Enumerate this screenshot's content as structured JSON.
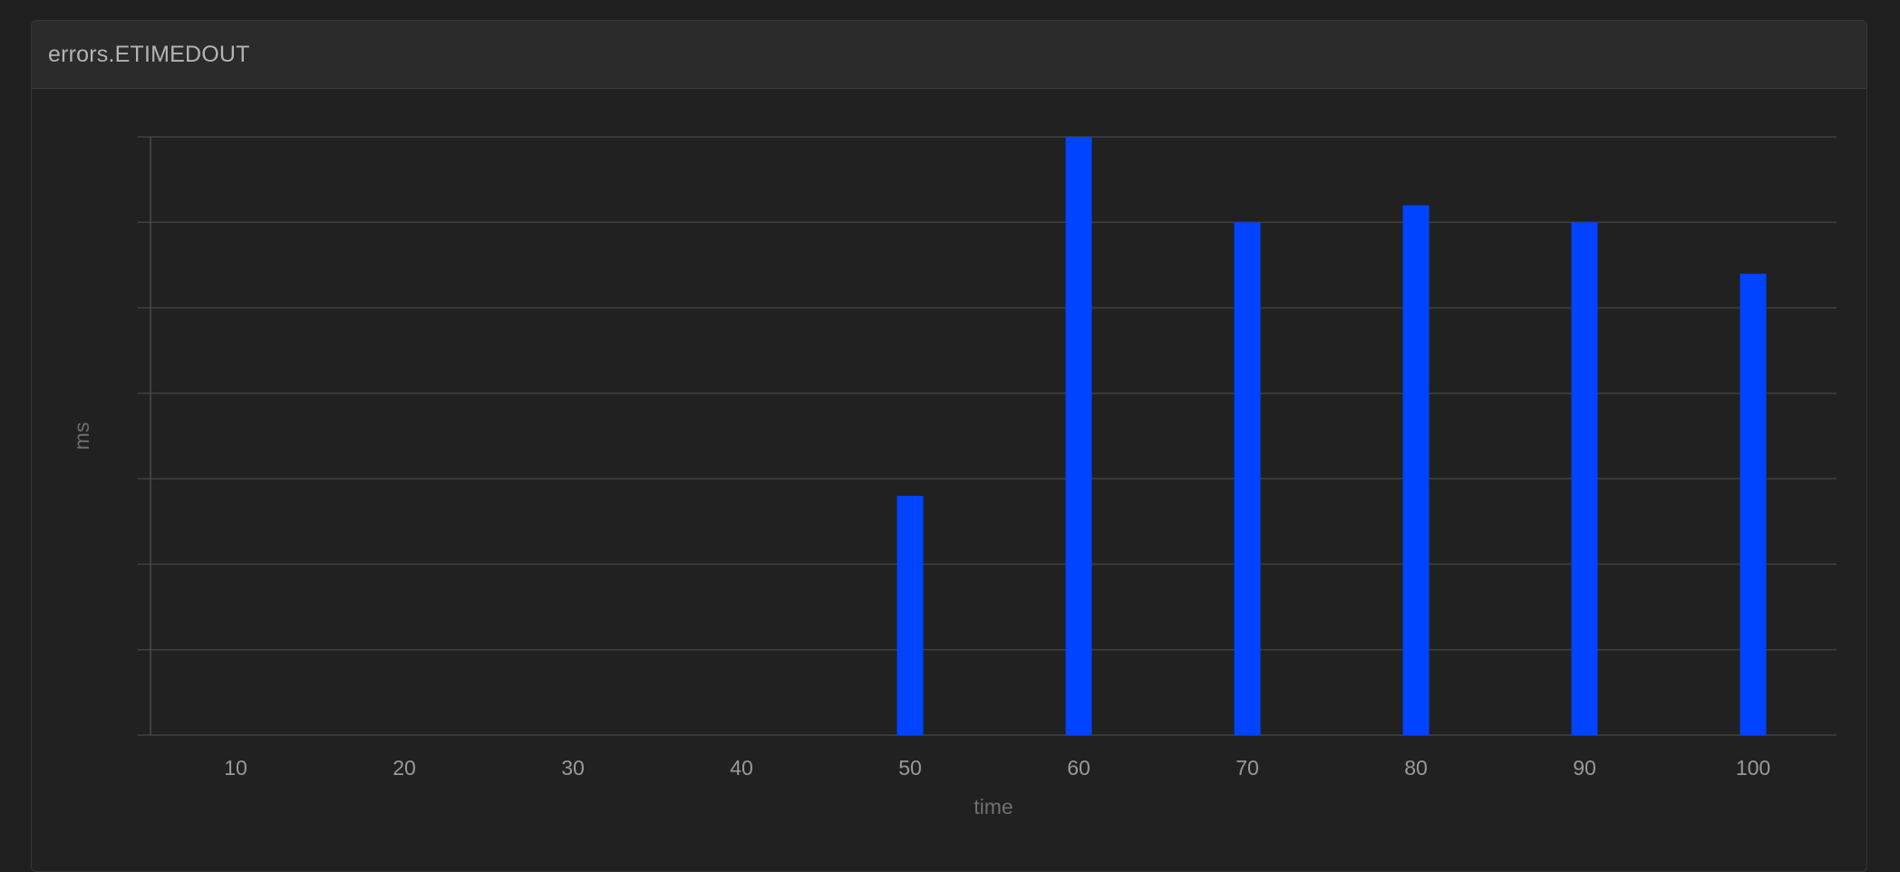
{
  "panel": {
    "title": "errors.ETIMEDOUT"
  },
  "colors": {
    "bar": "#0044ff",
    "background": "#212121",
    "header": "#2b2b2b",
    "grid": "#404040"
  },
  "chart_data": {
    "type": "bar",
    "title": "errors.ETIMEDOUT",
    "xlabel": "time",
    "ylabel": "ms",
    "categories": [
      10,
      20,
      30,
      40,
      50,
      60,
      70,
      80,
      90,
      100
    ],
    "values": [
      0,
      0,
      0,
      0,
      2.8,
      7.0,
      6.0,
      6.2,
      6.0,
      5.4
    ],
    "ylim": [
      0,
      7
    ],
    "y_gridlines": [
      0,
      1,
      2,
      3,
      4,
      5,
      6,
      7
    ],
    "y_tick_labels_shown": false,
    "grid": true,
    "legend": "none"
  }
}
